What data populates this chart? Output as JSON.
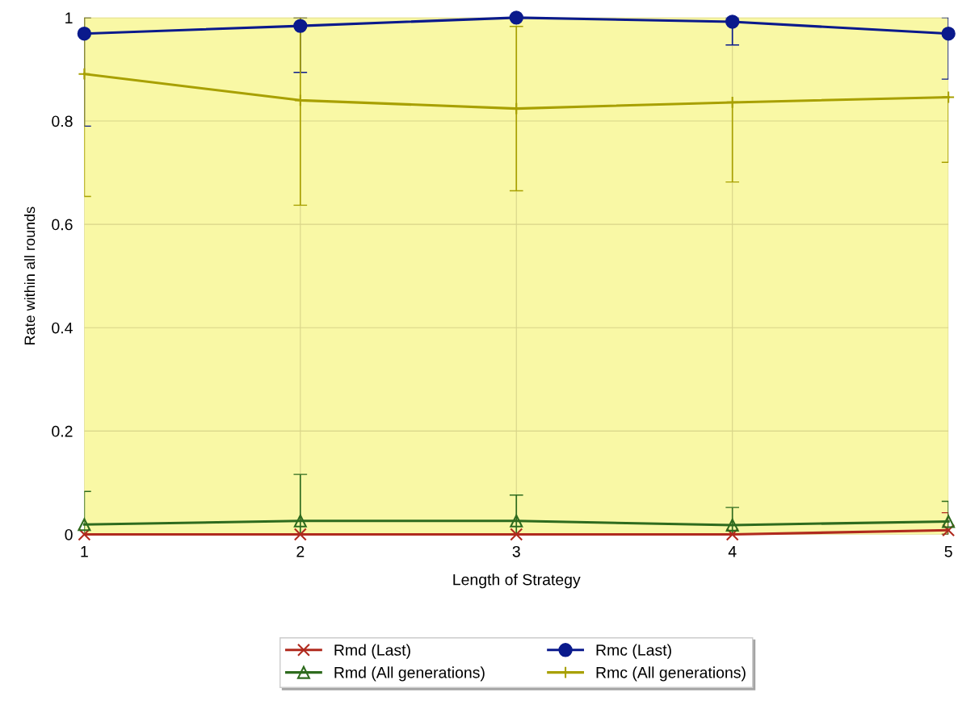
{
  "chart_data": {
    "type": "line",
    "xlabel": "Length of Strategy",
    "ylabel": "Rate within all rounds",
    "x": [
      1,
      2,
      3,
      4,
      5
    ],
    "series": [
      {
        "name": "Rmd (Last)",
        "color": "#b02a1e",
        "marker": "cross",
        "values": [
          0.0,
          0.0,
          0.0,
          0.0,
          0.008
        ],
        "errors": [
          null,
          null,
          null,
          null,
          [
            0,
            0.042
          ]
        ]
      },
      {
        "name": "Rmc (Last)",
        "color": "#0a1a8c",
        "marker": "circle",
        "values": [
          0.969,
          0.984,
          1.0,
          0.992,
          0.969
        ],
        "errors": [
          [
            0.79,
            1.0
          ],
          [
            0.894,
            1.0
          ],
          null,
          [
            0.947,
            1.0
          ],
          [
            0.881,
            1.0
          ]
        ]
      },
      {
        "name": "Rmd (All generations)",
        "color": "#2e6b1e",
        "marker": "triangle",
        "values": [
          0.019,
          0.026,
          0.026,
          0.018,
          0.025
        ],
        "errors": [
          [
            0,
            0.083
          ],
          [
            0,
            0.116
          ],
          [
            0,
            0.076
          ],
          [
            0,
            0.052
          ],
          [
            0,
            0.064
          ]
        ]
      },
      {
        "name": "Rmc (All generations)",
        "color": "#a8a000",
        "marker": "plus",
        "values": [
          0.891,
          0.84,
          0.824,
          0.836,
          0.846
        ],
        "errors": [
          [
            0.654,
            1.0
          ],
          [
            0.637,
            1.0
          ],
          [
            0.665,
            0.983
          ],
          [
            0.682,
            0.836
          ],
          [
            0.72,
            0.846
          ]
        ]
      }
    ],
    "xlim": [
      1,
      5
    ],
    "xticks": [
      1,
      2,
      3,
      4,
      5
    ],
    "ylim": [
      0,
      1
    ],
    "yticks": [
      0,
      0.2,
      0.4,
      0.6,
      0.8,
      1
    ],
    "grid": true,
    "legend": "bottom"
  }
}
